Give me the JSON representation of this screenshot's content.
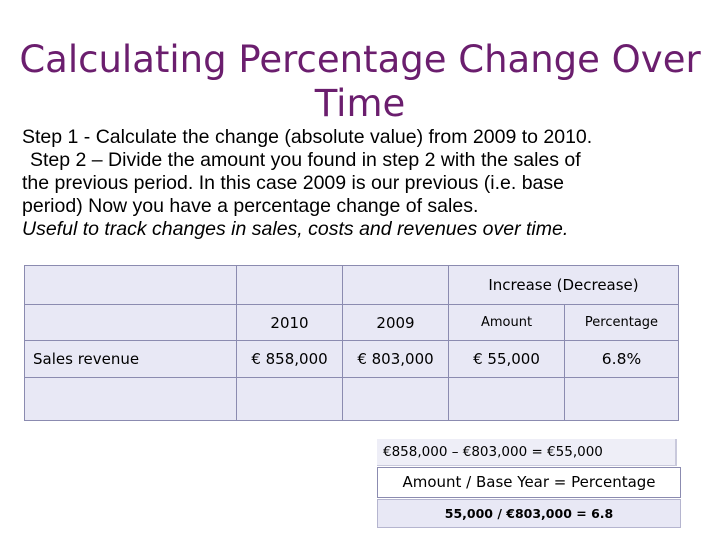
{
  "title": "Calculating Percentage Change Over Time",
  "steps": {
    "step1": "Step 1 -  Calculate the change (absolute value) from 2009 to 2010.",
    "step2_line1": "Step 2 – Divide the amount you found in step 2 with the sales of",
    "step2_line2": "the previous period. In this case 2009 is our previous (i.e. base",
    "step2_line3": "period)  Now you have a percentage change of sales.",
    "useful": "Useful to track changes in sales, costs and revenues over time."
  },
  "table": {
    "group_header": "Increase (Decrease)",
    "col_2010": "2010",
    "col_2009": "2009",
    "col_amount": "Amount",
    "col_percentage": "Percentage",
    "row_label": "Sales revenue",
    "val_2010": "€ 858,000",
    "val_2009": "€ 803,000",
    "val_amount": "€ 55,000",
    "val_percentage": "6.8%"
  },
  "formulas": {
    "difference": "€858,000 – €803,000 = €55,000",
    "rule": "Amount / Base Year = Percentage",
    "result": "55,000 / €803,000 = 6.8"
  },
  "colors": {
    "title": "#6b1e6e",
    "cell_fill": "#e8e8f5",
    "cell_border": "#8b8bb0"
  }
}
